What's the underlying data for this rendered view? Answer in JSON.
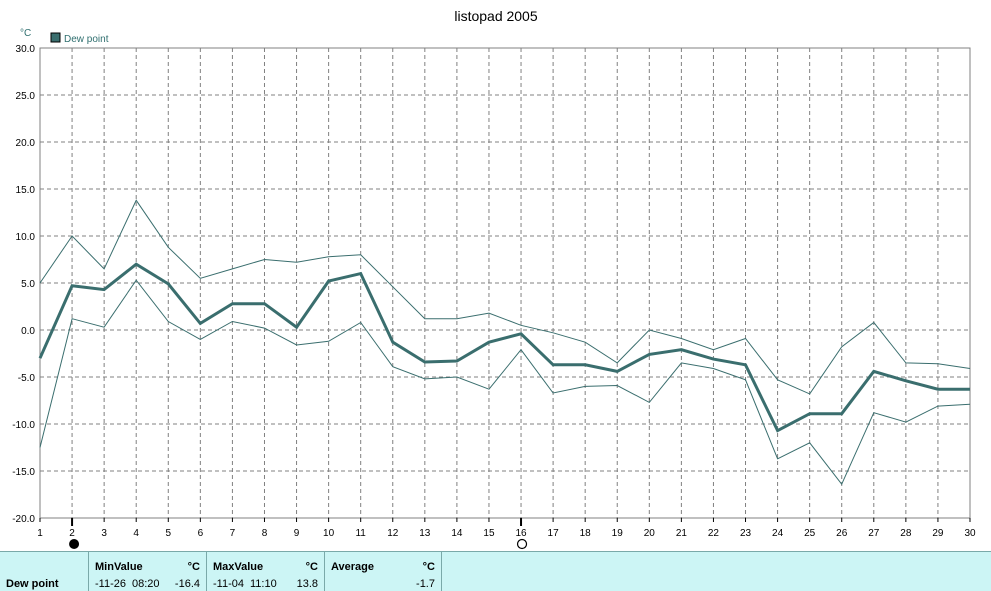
{
  "chart_data": {
    "type": "line",
    "title": "listopad 2005",
    "unit": "°C",
    "legend": [
      "Dew point"
    ],
    "ylim": [
      -20,
      30
    ],
    "yticks": [
      "30.0",
      "25.0",
      "20.0",
      "15.0",
      "10.0",
      "5.0",
      "0.0",
      "-5.0",
      "-10.0",
      "-15.0",
      "-20.0"
    ],
    "x": [
      1,
      2,
      3,
      4,
      5,
      6,
      7,
      8,
      9,
      10,
      11,
      12,
      13,
      14,
      15,
      16,
      17,
      18,
      19,
      20,
      21,
      22,
      23,
      24,
      25,
      26,
      27,
      28,
      29,
      30
    ],
    "grid": true,
    "series": [
      {
        "name": "Dew point",
        "role": "average",
        "values": [
          -3.0,
          4.7,
          4.3,
          7.0,
          4.9,
          0.7,
          2.8,
          2.8,
          0.3,
          5.2,
          6.0,
          -1.3,
          -3.4,
          -3.3,
          -1.3,
          -0.4,
          -3.7,
          -3.7,
          -4.4,
          -2.6,
          -2.1,
          -3.1,
          -3.7,
          -10.7,
          -8.9,
          -8.9,
          -4.4,
          -5.4,
          -6.3,
          -6.3
        ]
      },
      {
        "role": "max",
        "values": [
          5.0,
          10.0,
          6.5,
          13.8,
          8.8,
          5.5,
          6.5,
          7.5,
          7.2,
          7.8,
          8.0,
          4.6,
          1.2,
          1.2,
          1.8,
          0.5,
          -0.3,
          -1.3,
          -3.5,
          0.0,
          -0.9,
          -2.1,
          -0.9,
          -5.3,
          -6.8,
          -1.8,
          0.8,
          -3.5,
          -3.6,
          -4.1
        ]
      },
      {
        "role": "min",
        "values": [
          -12.5,
          1.2,
          0.3,
          5.3,
          0.9,
          -1.0,
          0.9,
          0.2,
          -1.6,
          -1.2,
          0.8,
          -3.9,
          -5.2,
          -5.0,
          -6.3,
          -2.1,
          -6.7,
          -6.0,
          -5.9,
          -7.7,
          -3.5,
          -4.1,
          -5.3,
          -13.7,
          -12.0,
          -16.4,
          -8.8,
          -9.8,
          -8.1,
          -7.9
        ]
      }
    ],
    "moon_phases": {
      "full": 2,
      "new": 16
    },
    "colors": {
      "line": "#3a6e6e",
      "grid": "#808080",
      "axis": "#808080"
    }
  },
  "stats": {
    "row_label": "Dew point",
    "min": {
      "header": "MinValue",
      "unit": "°C",
      "date": "-11-26",
      "time": "08:20",
      "value": "-16.4"
    },
    "max": {
      "header": "MaxValue",
      "unit": "°C",
      "date": "-11-04",
      "time": "11:10",
      "value": "13.8"
    },
    "avg": {
      "header": "Average",
      "unit": "°C",
      "value": "-1.7"
    }
  }
}
